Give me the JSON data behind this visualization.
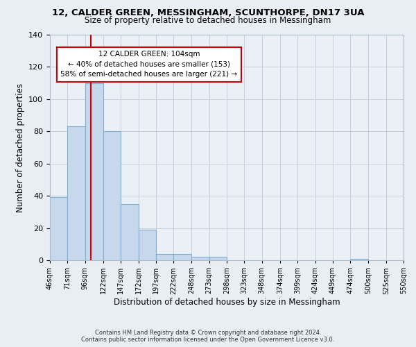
{
  "title": "12, CALDER GREEN, MESSINGHAM, SCUNTHORPE, DN17 3UA",
  "subtitle": "Size of property relative to detached houses in Messingham",
  "xlabel": "Distribution of detached houses by size in Messingham",
  "ylabel": "Number of detached properties",
  "bar_color": "#c8d8ec",
  "bar_edge_color": "#7bafd4",
  "bar_heights": [
    39,
    83,
    110,
    80,
    35,
    19,
    4,
    4,
    2,
    2,
    0,
    0,
    0,
    0,
    0,
    0,
    0,
    1,
    0,
    0
  ],
  "x_tick_labels": [
    "46sqm",
    "71sqm",
    "96sqm",
    "122sqm",
    "147sqm",
    "172sqm",
    "197sqm",
    "222sqm",
    "248sqm",
    "273sqm",
    "298sqm",
    "323sqm",
    "348sqm",
    "374sqm",
    "399sqm",
    "424sqm",
    "449sqm",
    "474sqm",
    "500sqm",
    "525sqm",
    "550sqm"
  ],
  "bin_edges": [
    46,
    71,
    96,
    122,
    147,
    172,
    197,
    222,
    248,
    273,
    298,
    323,
    348,
    374,
    399,
    424,
    449,
    474,
    500,
    525,
    550
  ],
  "vline_x": 104,
  "vline_color": "#cc0000",
  "ylim": [
    0,
    140
  ],
  "yticks": [
    0,
    20,
    40,
    60,
    80,
    100,
    120,
    140
  ],
  "annotation_text": "12 CALDER GREEN: 104sqm\n← 40% of detached houses are smaller (153)\n58% of semi-detached houses are larger (221) →",
  "footer_line1": "Contains HM Land Registry data © Crown copyright and database right 2024.",
  "footer_line2": "Contains public sector information licensed under the Open Government Licence v3.0.",
  "background_color": "#e8eef4",
  "plot_background_color": "#eaf0f6",
  "grid_color": "#c0ccd8"
}
